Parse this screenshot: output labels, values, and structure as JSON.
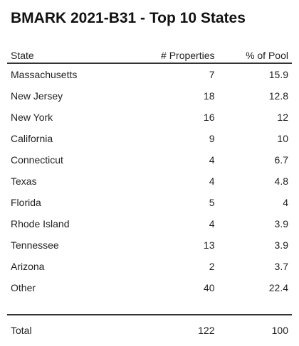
{
  "title": "BMARK 2021-B31 - Top 10 States",
  "chart_data": {
    "type": "table",
    "title": "BMARK 2021-B31 - Top 10 States",
    "columns": [
      "State",
      "# Properties",
      "% of Pool"
    ],
    "rows": [
      {
        "state": "Massachusetts",
        "properties": "7",
        "pool": "15.9"
      },
      {
        "state": "New Jersey",
        "properties": "18",
        "pool": "12.8"
      },
      {
        "state": "New York",
        "properties": "16",
        "pool": "12"
      },
      {
        "state": "California",
        "properties": "9",
        "pool": "10"
      },
      {
        "state": "Connecticut",
        "properties": "4",
        "pool": "6.7"
      },
      {
        "state": "Texas",
        "properties": "4",
        "pool": "4.8"
      },
      {
        "state": "Florida",
        "properties": "5",
        "pool": "4"
      },
      {
        "state": "Rhode Island",
        "properties": "4",
        "pool": "3.9"
      },
      {
        "state": "Tennessee",
        "properties": "13",
        "pool": "3.9"
      },
      {
        "state": "Arizona",
        "properties": "2",
        "pool": "3.7"
      },
      {
        "state": "Other",
        "properties": "40",
        "pool": "22.4"
      }
    ],
    "total": {
      "label": "Total",
      "properties": "122",
      "pool": "100"
    }
  }
}
